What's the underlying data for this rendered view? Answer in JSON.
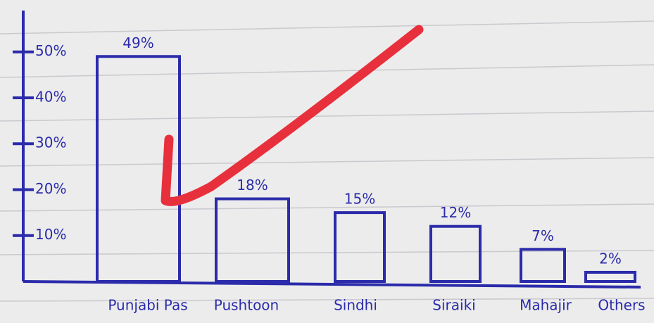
{
  "chart_data": {
    "type": "bar",
    "categories": [
      "Punjabi Pas",
      "Pushtoon",
      "Sindhi",
      "Siraiki",
      "Mahajir",
      "Others"
    ],
    "values": [
      49,
      18,
      15,
      12,
      7,
      2
    ],
    "value_labels": [
      "49%",
      "18%",
      "15%",
      "12%",
      "7%",
      "2%"
    ],
    "color": "#2b2bab",
    "ylim": [
      0,
      59
    ],
    "yticks": [
      {
        "value": 10,
        "label": "10%"
      },
      {
        "value": 20,
        "label": "20%"
      },
      {
        "value": 30,
        "label": "30%"
      },
      {
        "value": 40,
        "label": "40%"
      },
      {
        "value": 50,
        "label": "50%"
      }
    ]
  }
}
